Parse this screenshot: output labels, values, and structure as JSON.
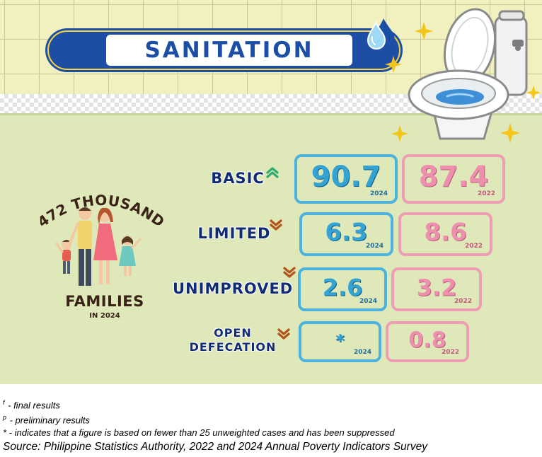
{
  "title": "SANITATION",
  "families": {
    "count_label": "472 THOUSAND",
    "word": "FAMILIES",
    "year": "IN 2024"
  },
  "colors": {
    "navy": "#1d4ea6",
    "box_2024": "#4cb3dc",
    "box_2022": "#ef9db5",
    "trend_up": "#2faa72",
    "trend_down": "#b3541c"
  },
  "chart_data": {
    "type": "table",
    "title": "SANITATION",
    "categories": [
      "BASIC",
      "LIMITED",
      "UNIMPROVED",
      "OPEN DEFECATION"
    ],
    "series": [
      {
        "name": "2024",
        "values": [
          "90.7",
          "6.3",
          "2.6",
          "*"
        ]
      },
      {
        "name": "2022",
        "values": [
          "87.4",
          "8.6",
          "3.2",
          "0.8"
        ]
      }
    ],
    "trend_icons": [
      "up-double-chevron-icon",
      "down-double-chevron-icon",
      "down-double-chevron-icon",
      "down-double-chevron-icon"
    ],
    "rows": [
      {
        "label": "BASIC",
        "label_lines": [
          "BASIC"
        ],
        "trend": "up",
        "v2024": "90.7",
        "y2024": "2024",
        "v2022": "87.4",
        "y2022": "2022"
      },
      {
        "label": "LIMITED",
        "label_lines": [
          "LIMITED"
        ],
        "trend": "down",
        "v2024": "6.3",
        "y2024": "2024",
        "v2022": "8.6",
        "y2022": "2022"
      },
      {
        "label": "UNIMPROVED",
        "label_lines": [
          "UNIMPROVED"
        ],
        "trend": "down",
        "v2024": "2.6",
        "y2024": "2024",
        "v2022": "3.2",
        "y2022": "2022"
      },
      {
        "label": "OPEN DEFECATION",
        "label_lines": [
          "OPEN",
          "DEFECATION"
        ],
        "trend": "down",
        "v2024": "*",
        "y2024": "2024",
        "v2022": "0.8",
        "y2022": "2022"
      }
    ]
  },
  "notes": {
    "final_mark": "f",
    "final_text": " - final results",
    "prelim_mark": "p",
    "prelim_text": " - preliminary results",
    "suppressed_text": "* - indicates that a figure is based on fewer than 25 unweighted cases and has been suppressed",
    "source": "Source: Philippine Statistics Authority, 2022 and 2024 Annual Poverty Indicators Survey"
  }
}
